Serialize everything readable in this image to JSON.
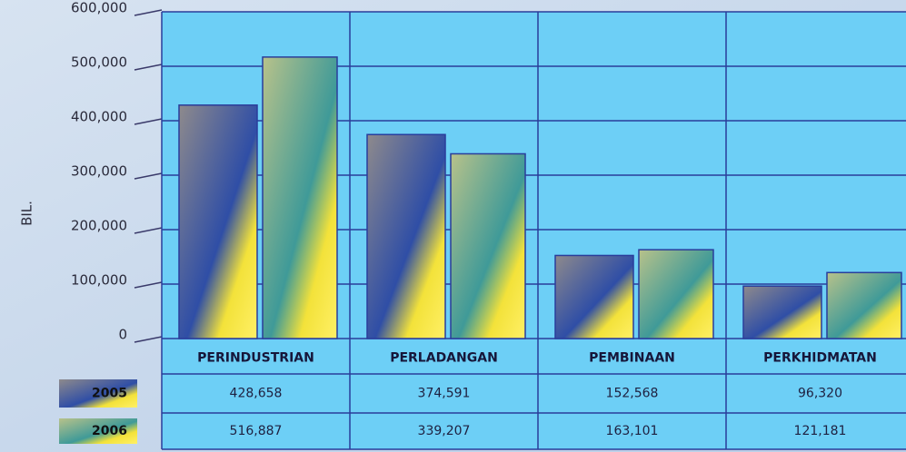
{
  "chart_data": {
    "type": "bar",
    "y_label": "BIL.",
    "categories": [
      "PERINDUSTRIAN",
      "PERLADANGAN",
      "PEMBINAAN",
      "PERKHIDMATAN"
    ],
    "series": [
      {
        "name": "2005",
        "color": "#2f4ea6",
        "values": [
          428658,
          374591,
          152568,
          96320
        ],
        "value_labels": [
          "428,658",
          "374,591",
          "152,568",
          "96,320"
        ]
      },
      {
        "name": "2006",
        "color": "#3f9a98",
        "values": [
          516887,
          339207,
          163101,
          121181
        ],
        "value_labels": [
          "516,887",
          "339,207",
          "163,101",
          "121,181"
        ]
      }
    ],
    "ylim": [
      0,
      600000
    ],
    "yticks": [
      {
        "value": 0,
        "label": "0"
      },
      {
        "value": 100000,
        "label": "100,000"
      },
      {
        "value": 200000,
        "label": "200,000"
      },
      {
        "value": 300000,
        "label": "300,000"
      },
      {
        "value": 400000,
        "label": "400,000"
      },
      {
        "value": 500000,
        "label": "500,000"
      },
      {
        "value": 600000,
        "label": "600,000"
      }
    ],
    "grid": true
  }
}
